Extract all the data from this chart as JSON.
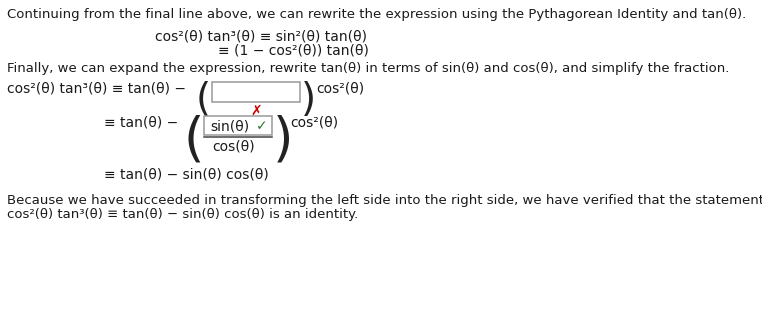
{
  "bg_color": "#ffffff",
  "text_color": "#1a1a1a",
  "fs": 9.5,
  "fsm": 10.0,
  "line1": "Continuing from the final line above, we can rewrite the expression using the Pythagorean Identity and tan(θ).",
  "eq1a": "cos²(θ) tan³(θ) ≡ sin²(θ) tan(θ)",
  "eq1b": "≡ (1 − cos²(θ)) tan(θ)",
  "line2": "Finally, we can expand the expression, rewrite tan(θ) in terms of sin(θ) and cos(θ), and simplify the fraction.",
  "footer1": "Because we have succeeded in transforming the left side into the right side, we have verified that the statement",
  "footer2": "cos²(θ) tan³(θ) ≡ tan(θ) − sin(θ) cos(θ) is an identity.",
  "box_border": "#999999",
  "check_color": "#2d7a2d",
  "x_color": "#cc0000",
  "paren_color": "#222222",
  "dark": "#1a1a1a"
}
